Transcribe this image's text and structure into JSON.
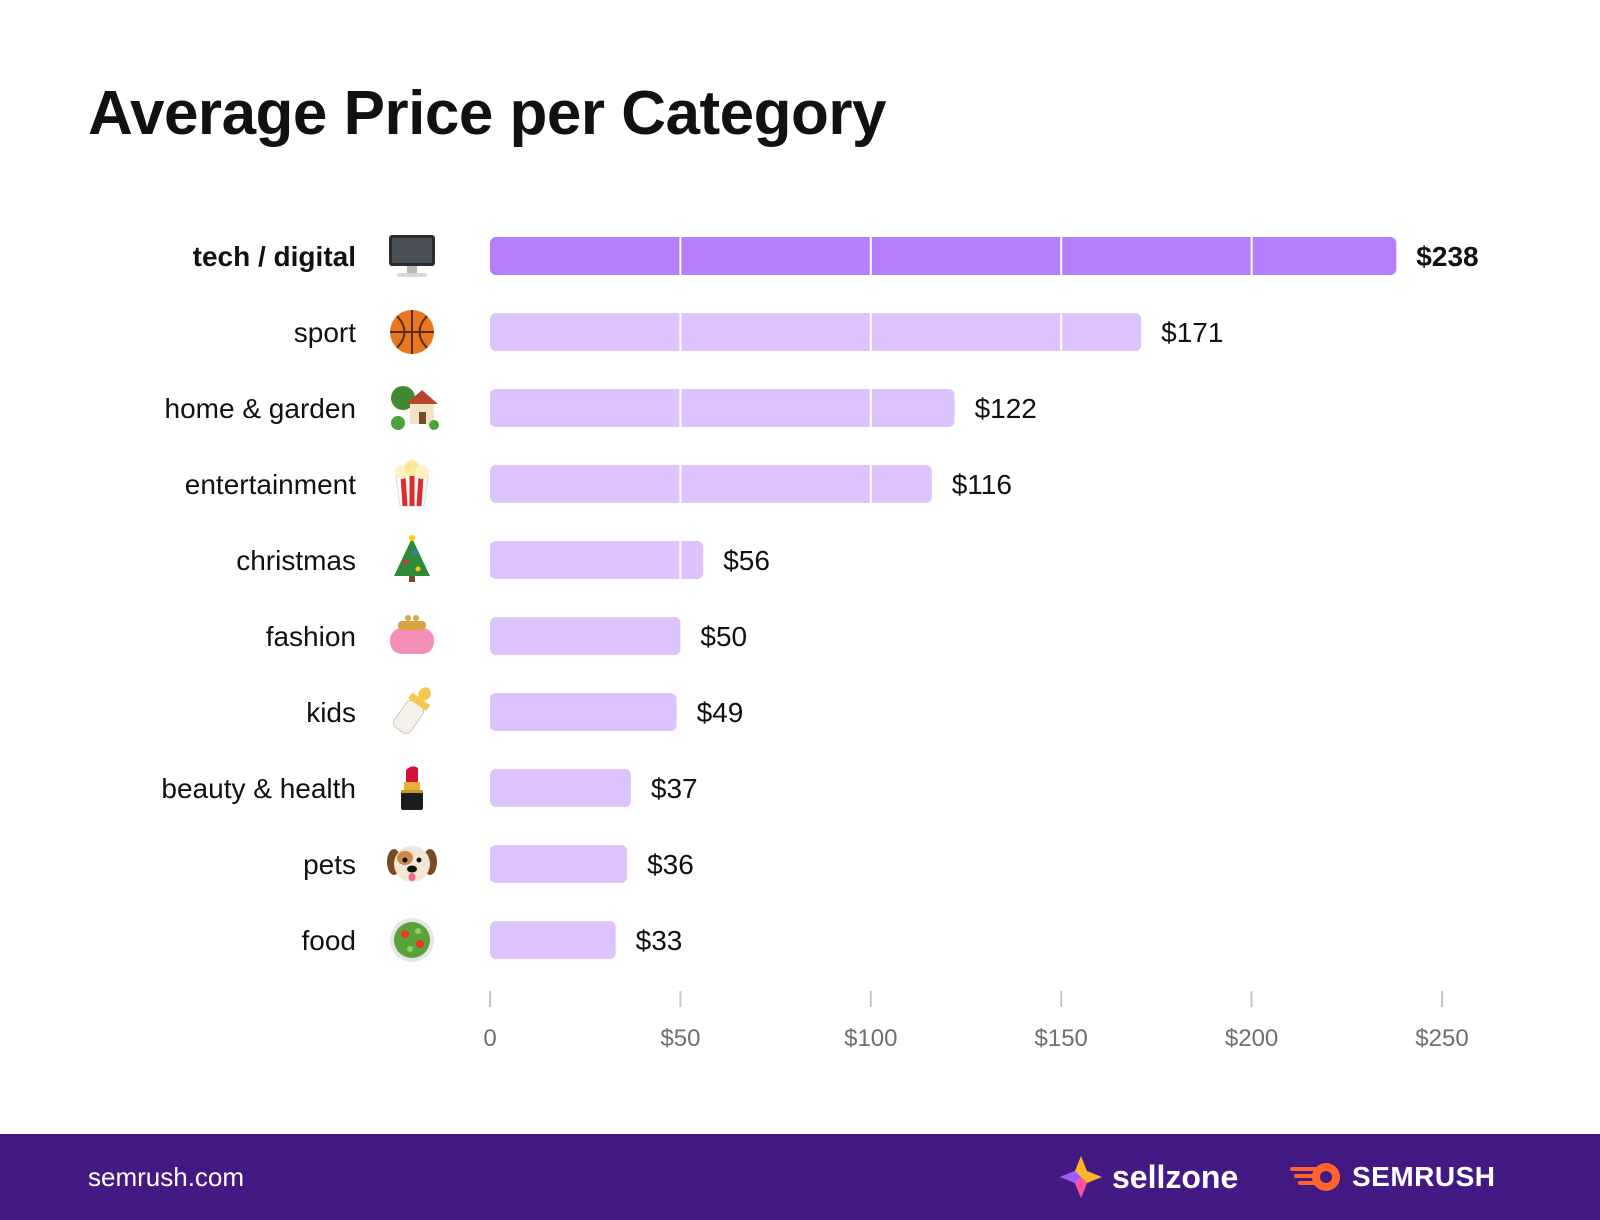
{
  "chart_data": {
    "type": "bar",
    "orientation": "horizontal",
    "title": "Average Price per Category",
    "categories": [
      "tech / digital",
      "sport",
      "home & garden",
      "entertainment",
      "christmas",
      "fashion",
      "kids",
      "beauty & health",
      "pets",
      "food"
    ],
    "icons": [
      "desktop-computer-icon",
      "basketball-icon",
      "house-with-garden-icon",
      "popcorn-icon",
      "christmas-tree-icon",
      "purse-icon",
      "baby-bottle-icon",
      "lipstick-icon",
      "dog-face-icon",
      "green-salad-icon"
    ],
    "values": [
      238,
      171,
      122,
      116,
      56,
      50,
      49,
      37,
      36,
      33
    ],
    "value_labels": [
      "$238",
      "$171",
      "$122",
      "$116",
      "$56",
      "$50",
      "$49",
      "$37",
      "$36",
      "$33"
    ],
    "highlight_index": 0,
    "xlim": [
      0,
      250
    ],
    "xticks": [
      0,
      50,
      100,
      150,
      200,
      250
    ],
    "xtick_labels": [
      "0",
      "$50",
      "$100",
      "$150",
      "$200",
      "$250"
    ],
    "xlabel": "",
    "ylabel": "",
    "colors": {
      "highlight_bar": "#b57ffb",
      "bar": "#dcc3fd",
      "grid_line": "#ffffff",
      "tick_label": "#6f6f6f",
      "tick_mark": "#c6c6c6",
      "text": "#111111"
    }
  },
  "footer": {
    "url": "semrush.com",
    "brand_1": "sellzone",
    "brand_2": "SEMRUSH",
    "background": "#431a84"
  }
}
